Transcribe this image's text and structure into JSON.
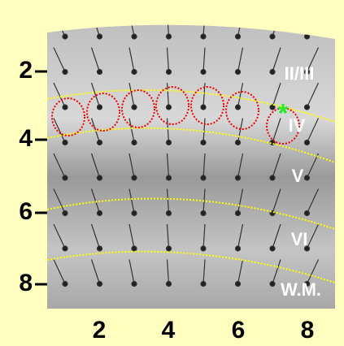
{
  "x_axis": {
    "ticks": [
      "2",
      "4",
      "6",
      "8"
    ]
  },
  "y_axis": {
    "ticks": [
      "2",
      "4",
      "6",
      "8"
    ]
  },
  "layers": [
    "II/III",
    "IV",
    "V",
    "VI",
    "W.M."
  ]
}
